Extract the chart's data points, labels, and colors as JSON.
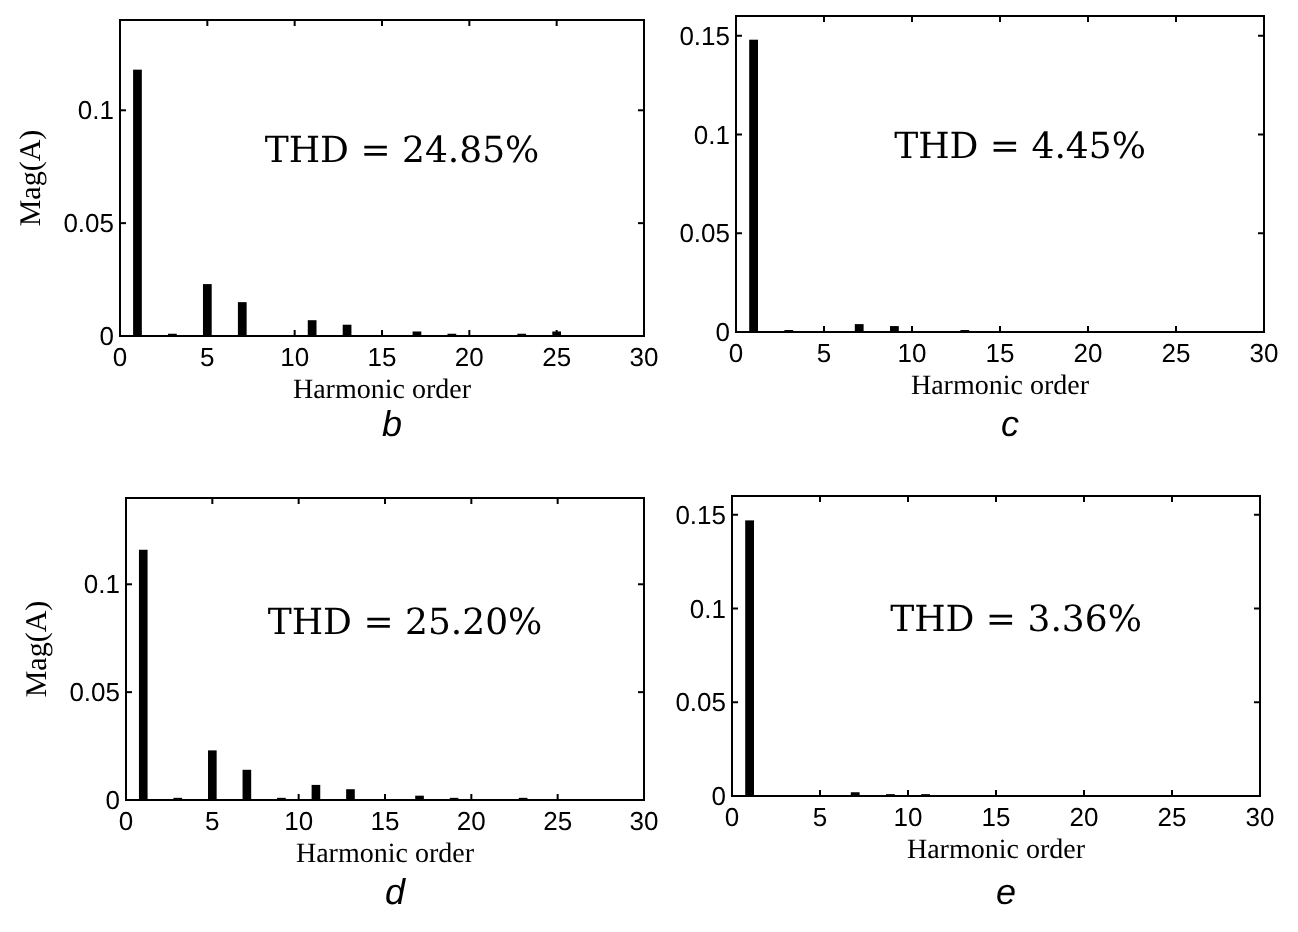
{
  "chart_data": [
    {
      "type": "bar",
      "title": "b",
      "xlabel": "Harmonic order",
      "ylabel": "Mag(A)",
      "annotations": [
        "THD = 24.85%"
      ],
      "x": [
        1,
        3,
        5,
        7,
        11,
        13,
        17,
        19,
        23,
        25
      ],
      "values": [
        0.118,
        0.001,
        0.023,
        0.015,
        0.007,
        0.005,
        0.002,
        0.001,
        0.001,
        0.002
      ],
      "color": "#000000",
      "xlim": [
        0,
        30
      ],
      "xticks": [
        0,
        5,
        10,
        15,
        20,
        25,
        30
      ],
      "ylim": [
        0,
        0.14
      ],
      "yticks": [
        0,
        0.05,
        0.1
      ]
    },
    {
      "type": "bar",
      "title": "c",
      "xlabel": "Harmonic order",
      "annotations": [
        "THD = 4.45%"
      ],
      "x": [
        1,
        3,
        7,
        9,
        13
      ],
      "values": [
        0.148,
        0.001,
        0.004,
        0.003,
        0.001
      ],
      "color": "#000000",
      "xlim": [
        0,
        30
      ],
      "xticks": [
        0,
        5,
        10,
        15,
        20,
        25,
        30
      ],
      "ylim": [
        0,
        0.16
      ],
      "yticks": [
        0,
        0.05,
        0.1,
        0.15
      ]
    },
    {
      "type": "bar",
      "title": "d",
      "xlabel": "Harmonic order",
      "ylabel": "Mag(A)",
      "annotations": [
        "THD = 25.20%"
      ],
      "x": [
        1,
        3,
        5,
        7,
        9,
        11,
        13,
        17,
        19,
        23
      ],
      "values": [
        0.116,
        0.001,
        0.023,
        0.014,
        0.001,
        0.007,
        0.005,
        0.002,
        0.001,
        0.001
      ],
      "color": "#000000",
      "xlim": [
        0,
        30
      ],
      "xticks": [
        0,
        5,
        10,
        15,
        20,
        25,
        30
      ],
      "ylim": [
        0,
        0.14
      ],
      "yticks": [
        0,
        0.05,
        0.1
      ]
    },
    {
      "type": "bar",
      "title": "e",
      "xlabel": "Harmonic order",
      "annotations": [
        "THD = 3.36%"
      ],
      "x": [
        1,
        7,
        9,
        11
      ],
      "values": [
        0.147,
        0.002,
        0.001,
        0.001
      ],
      "color": "#000000",
      "xlim": [
        0,
        30
      ],
      "xticks": [
        0,
        5,
        10,
        15,
        20,
        25,
        30
      ],
      "ylim": [
        0,
        0.16
      ],
      "yticks": [
        0,
        0.05,
        0.1,
        0.15
      ]
    }
  ]
}
